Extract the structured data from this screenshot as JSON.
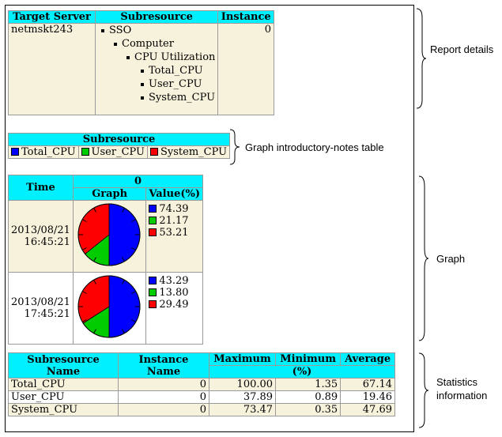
{
  "report_details": {
    "headers": [
      "Target Server",
      "Subresource",
      "Instance"
    ],
    "target_server": "netmskt243",
    "instance": "0",
    "tree": [
      {
        "label": "SSO",
        "level": 0
      },
      {
        "label": "Computer",
        "level": 1
      },
      {
        "label": "CPU Utilization",
        "level": 2
      },
      {
        "label": "Total_CPU",
        "level": 3
      },
      {
        "label": "User_CPU",
        "level": 3
      },
      {
        "label": "System_CPU",
        "level": 3
      }
    ]
  },
  "intro_notes": {
    "header": "Subresource",
    "items": [
      {
        "label": "Total_CPU",
        "color": "#0000ff"
      },
      {
        "label": "User_CPU",
        "color": "#00cc00"
      },
      {
        "label": "System_CPU",
        "color": "#ff0000"
      }
    ]
  },
  "graph_table": {
    "header_time": "Time",
    "header_instance": "0",
    "header_graph": "Graph",
    "header_value": "Value(%)",
    "rows": [
      {
        "time_date": "2013/08/21",
        "time_clock": "16:45:21",
        "values": [
          "74.39",
          "21.17",
          "53.21"
        ]
      },
      {
        "time_date": "2013/08/21",
        "time_clock": "17:45:21",
        "values": [
          "43.29",
          "13.80",
          "29.49"
        ]
      }
    ]
  },
  "chart_data": [
    {
      "type": "pie",
      "categories": [
        "Total_CPU",
        "User_CPU",
        "System_CPU"
      ],
      "values": [
        74.39,
        21.17,
        53.21
      ],
      "colors": [
        "#0000ff",
        "#00cc00",
        "#ff0000"
      ]
    },
    {
      "type": "pie",
      "categories": [
        "Total_CPU",
        "User_CPU",
        "System_CPU"
      ],
      "values": [
        43.29,
        13.8,
        29.49
      ],
      "colors": [
        "#0000ff",
        "#00cc00",
        "#ff0000"
      ]
    }
  ],
  "statistics": {
    "headers": [
      "Subresource Name",
      "Instance Name",
      "Maximum",
      "Minimum",
      "Average"
    ],
    "unit": "(%)",
    "rows": [
      {
        "name": "Total_CPU",
        "instance": "0",
        "max": "100.00",
        "min": "1.35",
        "avg": "67.14"
      },
      {
        "name": "User_CPU",
        "instance": "0",
        "max": "37.89",
        "min": "0.89",
        "avg": "19.46"
      },
      {
        "name": "System_CPU",
        "instance": "0",
        "max": "73.47",
        "min": "0.35",
        "avg": "47.69"
      }
    ]
  },
  "annotations": {
    "report_details": "Report details",
    "intro_notes": "Graph introductory-notes table",
    "graph": "Graph",
    "statistics_line1": "Statistics",
    "statistics_line2": "information"
  }
}
